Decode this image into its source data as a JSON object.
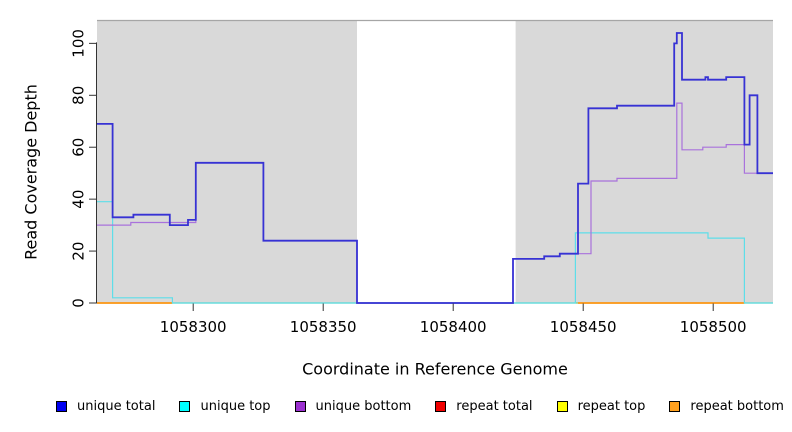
{
  "chart_data": {
    "type": "line",
    "style": "step-coverage-plot",
    "xlabel": "Coordinate in Reference Genome",
    "ylabel": "Read Coverage Depth",
    "xlim": [
      1058263,
      1058523
    ],
    "ylim": [
      0,
      109
    ],
    "x_ticks": [
      1058300,
      1058350,
      1058400,
      1058450,
      1058500
    ],
    "y_ticks": [
      0,
      20,
      40,
      60,
      80,
      100
    ],
    "plot_bg": "#d9d9d9",
    "masked_region": {
      "x_start": 1058363,
      "x_end": 1058424,
      "color": "#ffffff"
    },
    "grid": false,
    "series": [
      {
        "name": "zero baseline",
        "color": "#7cc87c",
        "width": 1.2,
        "segments": [
          [
            [
              1058263,
              0
            ],
            [
              1058523,
              0
            ]
          ]
        ]
      },
      {
        "name": "repeat total",
        "color": "#ee0000",
        "width": 1.2,
        "segments": []
      },
      {
        "name": "repeat top",
        "color": "#f5f500",
        "width": 1.2,
        "segments": []
      },
      {
        "name": "repeat bottom",
        "color": "#ff9715",
        "width": 1.8,
        "segments": [
          [
            [
              1058263,
              0
            ],
            [
              1058292,
              0
            ]
          ],
          [
            [
              1058448,
              0
            ],
            [
              1058512,
              0
            ]
          ]
        ]
      },
      {
        "name": "unique top",
        "color": "#5edee9",
        "width": 1.2,
        "segments": [
          [
            [
              1058263,
              39
            ],
            [
              1058269,
              2
            ],
            [
              1058292,
              0
            ],
            [
              1058447,
              27
            ],
            [
              1058498,
              25
            ],
            [
              1058512,
              0
            ],
            [
              1058523,
              0
            ]
          ]
        ]
      },
      {
        "name": "unique bottom",
        "color": "#a972dc",
        "width": 1.2,
        "segments": [
          [
            [
              1058263,
              30
            ],
            [
              1058276,
              31
            ],
            [
              1058301,
              54
            ],
            [
              1058327,
              24
            ],
            [
              1058363,
              0
            ],
            [
              1058423,
              17
            ],
            [
              1058435,
              18
            ],
            [
              1058441,
              19
            ],
            [
              1058453,
              47
            ],
            [
              1058463,
              48
            ],
            [
              1058486,
              77
            ],
            [
              1058488,
              59
            ],
            [
              1058496,
              60
            ],
            [
              1058505,
              61
            ],
            [
              1058512,
              50
            ],
            [
              1058523,
              50
            ]
          ]
        ]
      },
      {
        "name": "unique total",
        "color": "#3732d4",
        "width": 1.8,
        "segments": [
          [
            [
              1058263,
              69
            ],
            [
              1058269,
              33
            ],
            [
              1058277,
              34
            ],
            [
              1058291,
              30
            ],
            [
              1058298,
              32
            ],
            [
              1058301,
              54
            ],
            [
              1058327,
              24
            ],
            [
              1058363,
              0
            ],
            [
              1058423,
              17
            ],
            [
              1058435,
              18
            ],
            [
              1058441,
              19
            ],
            [
              1058448,
              46
            ],
            [
              1058452,
              75
            ],
            [
              1058463,
              76
            ],
            [
              1058485,
              100
            ],
            [
              1058486,
              104
            ],
            [
              1058488,
              86
            ],
            [
              1058497,
              87
            ],
            [
              1058498,
              86
            ],
            [
              1058505,
              87
            ],
            [
              1058512,
              61
            ],
            [
              1058514,
              80
            ],
            [
              1058517,
              50
            ],
            [
              1058523,
              50
            ]
          ]
        ]
      }
    ],
    "legend": [
      {
        "label": "unique total",
        "color": "#0000f0"
      },
      {
        "label": "unique top",
        "color": "#00ffff"
      },
      {
        "label": "unique bottom",
        "color": "#9b30d0"
      },
      {
        "label": "repeat total",
        "color": "#f00000"
      },
      {
        "label": "repeat top",
        "color": "#ffff00"
      },
      {
        "label": "repeat bottom",
        "color": "#ffa01e"
      }
    ],
    "axis_color": "#333333",
    "top_border_color": "#a6a6a6",
    "tick_label_color": "#000000"
  }
}
